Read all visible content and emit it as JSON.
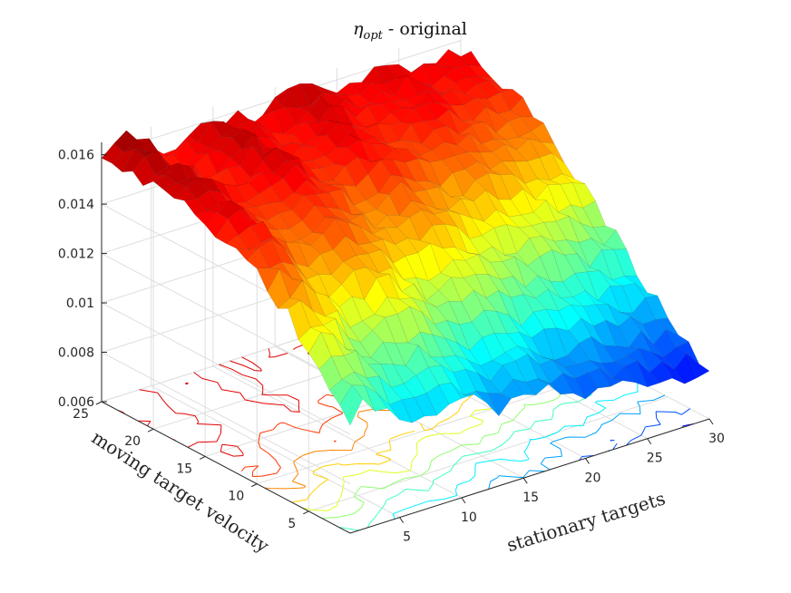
{
  "chart_data": {
    "type": "surface3d",
    "title_symbol": "η",
    "title_subscript": "opt",
    "title_rest": " - original",
    "xlabel": "stationary targets",
    "ylabel": "moving target velocity",
    "zlabel": "",
    "x_ticks": [
      "5",
      "10",
      "15",
      "20",
      "25",
      "30"
    ],
    "y_ticks": [
      "5",
      "10",
      "15",
      "20",
      "25"
    ],
    "z_ticks": [
      "0.006",
      "0.008",
      "0.01",
      "0.012",
      "0.014",
      "0.016"
    ],
    "xlim": [
      1,
      30
    ],
    "ylim": [
      1,
      25
    ],
    "zlim": [
      0.006,
      0.0165
    ],
    "grid": true,
    "colormap": "jet",
    "contour_below": true,
    "surface_description": {
      "approx_max": 0.0168,
      "approx_min": 0.0065,
      "trend": "decreases with increasing moving target velocity ridge at low velocity; decreases toward high stationary targets at low velocity"
    }
  }
}
